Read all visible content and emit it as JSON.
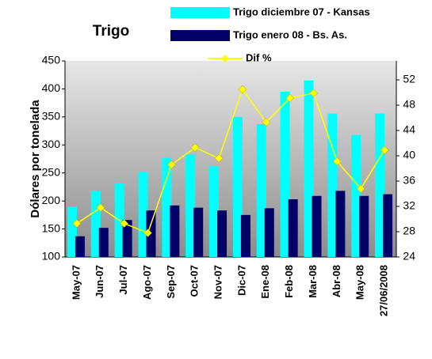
{
  "chart_data": {
    "type": "bar_line",
    "title": "Trigo",
    "ylabel": "Dólares por tonelada",
    "categories": [
      "May-07",
      "Jun-07",
      "Jul-07",
      "Ago-07",
      "Sep-07",
      "Oct-07",
      "Nov-07",
      "Dic-07",
      "Ene-08",
      "Feb-08",
      "Mar-08",
      "Abr-08",
      "May-08",
      "27/06/2008"
    ],
    "series": [
      {
        "name": "Trigo diciembre 07 - Kansas",
        "color": "#00ffff",
        "kind": "bar",
        "values": [
          190,
          218,
          232,
          252,
          277,
          283,
          262,
          350,
          337,
          395,
          415,
          356,
          318,
          356
        ]
      },
      {
        "name": "Trigo enero 08 - Bs. As.",
        "color": "#000066",
        "kind": "bar",
        "values": [
          137,
          152,
          166,
          183,
          192,
          188,
          183,
          175,
          187,
          203,
          209,
          218,
          209,
          212
        ]
      },
      {
        "name": "Dif %",
        "color": "#ffff00",
        "kind": "line",
        "axis": "y2",
        "values": [
          29.3,
          31.8,
          29.3,
          27.8,
          38.6,
          41.3,
          39.6,
          50.5,
          45.3,
          49.1,
          49.9,
          39.1,
          34.8,
          40.9
        ]
      }
    ],
    "ylim": [
      100,
      450
    ],
    "yticks": [
      100,
      150,
      200,
      250,
      300,
      350,
      400,
      450
    ],
    "y2lim": [
      24,
      55
    ],
    "y2ticks": [
      24,
      28,
      32,
      36,
      40,
      44,
      48,
      52
    ]
  }
}
